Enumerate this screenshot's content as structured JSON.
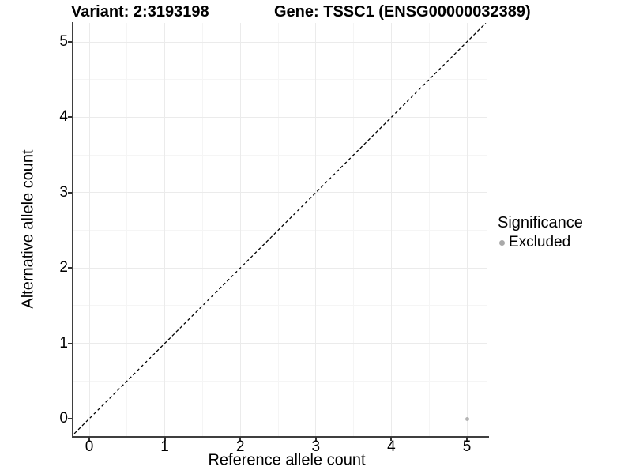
{
  "header": {
    "variant_title": "Variant: 2:3193198",
    "gene_title": "Gene: TSSC1 (ENSG00000032389)"
  },
  "chart_data": {
    "type": "scatter",
    "title_left": "Variant: 2:3193198",
    "title_right": "Gene: TSSC1 (ENSG00000032389)",
    "xlabel": "Reference allele count",
    "ylabel": "Alternative allele count",
    "xticks": [
      0,
      1,
      2,
      3,
      4,
      5
    ],
    "yticks": [
      0,
      1,
      2,
      3,
      4,
      5
    ],
    "xlim": [
      -0.25,
      5.25
    ],
    "ylim": [
      -0.25,
      5.25
    ],
    "grid": {
      "major": true,
      "minor": true
    },
    "reference_line": {
      "type": "identity",
      "style": "dashed",
      "color": "#000000"
    },
    "series": [
      {
        "name": "Excluded",
        "marker": "circle",
        "color": "#b4b4b4",
        "points": [
          {
            "x": 5,
            "y": 0
          }
        ]
      }
    ],
    "legend": {
      "title": "Significance",
      "position": "right",
      "entries": [
        {
          "label": "Excluded",
          "color": "#a9a9a9",
          "marker": "circle"
        }
      ]
    }
  },
  "colors": {
    "background": "#ffffff",
    "text": "#000000",
    "axis_line": "#3f3f3f",
    "grid_major": "#ebebeb",
    "grid_minor": "#f5f5f5",
    "point": "#b4b4b4",
    "legend_dot": "#a9a9a9"
  }
}
